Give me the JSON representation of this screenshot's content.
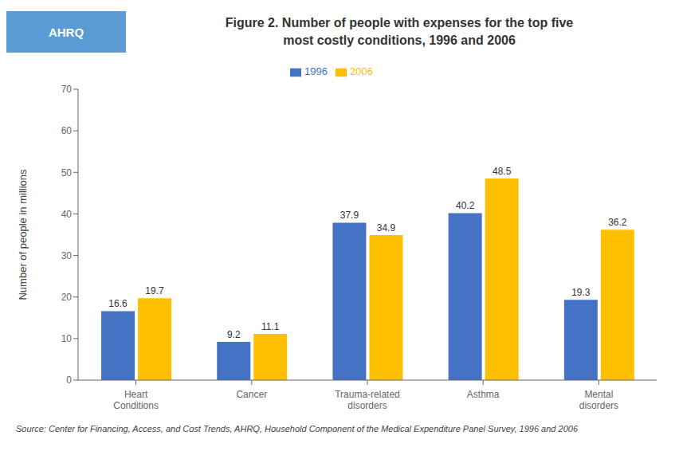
{
  "chart_data": {
    "type": "bar",
    "title": "Figure 2. Number of people with expenses for the top five\nmost costly conditions, 1996 and 2006",
    "categories": [
      "Heart\nConditions",
      "Cancer",
      "Trauma-related\ndisorders",
      "Asthma",
      "Mental\ndisorders"
    ],
    "series": [
      {
        "name": "1996",
        "color": "#4472C4",
        "values": [
          16.6,
          9.2,
          37.9,
          40.2,
          19.3
        ]
      },
      {
        "name": "2006",
        "color": "#FFC000",
        "values": [
          19.7,
          11.1,
          34.9,
          48.5,
          36.2
        ]
      }
    ],
    "ylabel": "Number of people in millions",
    "ylim": [
      0,
      70
    ],
    "yticks": [
      0,
      10,
      20,
      30,
      40,
      50,
      60,
      70
    ],
    "grid": false,
    "legend": "top",
    "data_labels": true,
    "annotations": [
      "AHRQ",
      "Source: Center for Financing, Access, and Cost Trends, AHRQ, Household Component of the Medical Expenditure Panel Survey, 1996 and 2006"
    ]
  }
}
